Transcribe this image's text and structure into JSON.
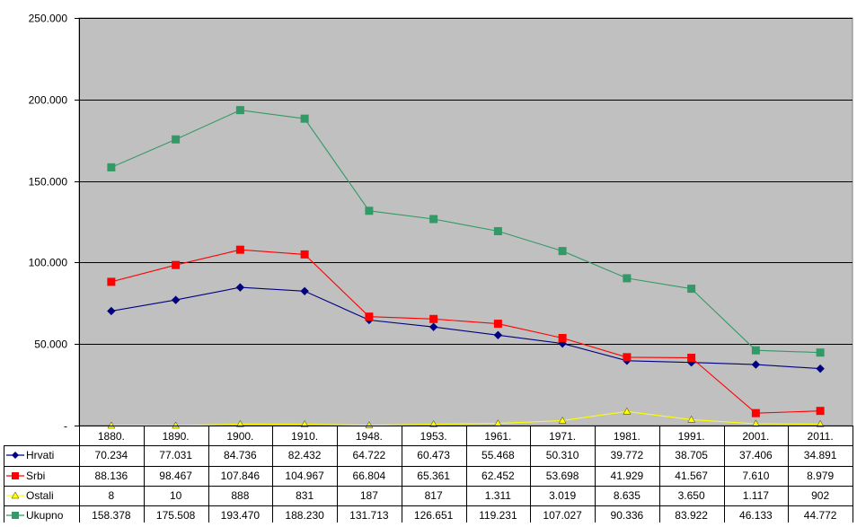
{
  "chart_data": {
    "type": "line",
    "title": "",
    "xlabel": "",
    "ylabel": "",
    "ylim": [
      0,
      250000
    ],
    "yticks": [
      {
        "value": 0,
        "label": "-"
      },
      {
        "value": 50000,
        "label": "50.000"
      },
      {
        "value": 100000,
        "label": "100.000"
      },
      {
        "value": 150000,
        "label": "150.000"
      },
      {
        "value": 200000,
        "label": "200.000"
      },
      {
        "value": 250000,
        "label": "250.000"
      }
    ],
    "grid": true,
    "plot_background": "#c0c0c0",
    "legend_placement": "data-table-left",
    "categories": [
      "1880.",
      "1890.",
      "1900.",
      "1910.",
      "1948.",
      "1953.",
      "1961.",
      "1971.",
      "1981.",
      "1991.",
      "2001.",
      "2011."
    ],
    "series": [
      {
        "name": "Hrvati",
        "color": "#000080",
        "marker": "diamond",
        "values": [
          70234,
          77031,
          84736,
          82432,
          64722,
          60473,
          55468,
          50310,
          39772,
          38705,
          37406,
          34891
        ],
        "labels": [
          "70.234",
          "77.031",
          "84.736",
          "82.432",
          "64.722",
          "60.473",
          "55.468",
          "50.310",
          "39.772",
          "38.705",
          "37.406",
          "34.891"
        ]
      },
      {
        "name": "Srbi",
        "color": "#ff0000",
        "marker": "square",
        "values": [
          88136,
          98467,
          107846,
          104967,
          66804,
          65361,
          62452,
          53698,
          41929,
          41567,
          7610,
          8979
        ],
        "labels": [
          "88.136",
          "98.467",
          "107.846",
          "104.967",
          "66.804",
          "65.361",
          "62.452",
          "53.698",
          "41.929",
          "41.567",
          "7.610",
          "8.979"
        ]
      },
      {
        "name": "Ostali",
        "color": "#ffff00",
        "marker": "triangle",
        "values": [
          8,
          10,
          888,
          831,
          187,
          817,
          1311,
          3019,
          8635,
          3650,
          1117,
          902
        ],
        "labels": [
          "8",
          "10",
          "888",
          "831",
          "187",
          "817",
          "1.311",
          "3.019",
          "8.635",
          "3.650",
          "1.117",
          "902"
        ]
      },
      {
        "name": "Ukupno",
        "color": "#339966",
        "marker": "square",
        "values": [
          158378,
          175508,
          193470,
          188230,
          131713,
          126651,
          119231,
          107027,
          90336,
          83922,
          46133,
          44772
        ],
        "labels": [
          "158.378",
          "175.508",
          "193.470",
          "188.230",
          "131.713",
          "126.651",
          "119.231",
          "107.027",
          "90.336",
          "83.922",
          "46.133",
          "44.772"
        ]
      }
    ]
  }
}
